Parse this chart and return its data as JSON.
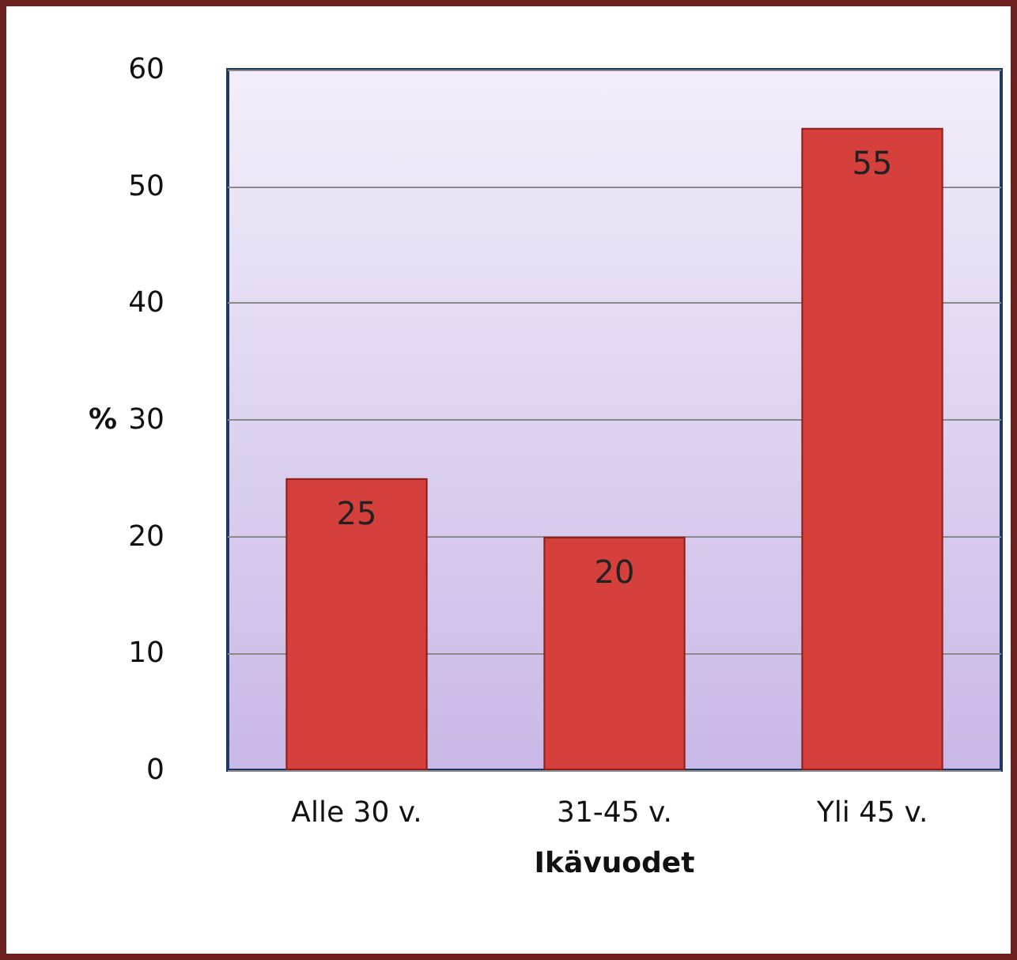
{
  "chart_data": {
    "type": "bar",
    "xlabel": "Ikävuodet",
    "ylabel": "%",
    "categories": [
      "Alle 30 v.",
      "31-45 v.",
      "Yli 45 v."
    ],
    "values": [
      25,
      20,
      55
    ],
    "color": "#d5403c",
    "ylim": [
      0,
      60
    ],
    "yticks": [
      0,
      10,
      20,
      30,
      40,
      50,
      60
    ],
    "grid": "y",
    "data_labels": true
  }
}
